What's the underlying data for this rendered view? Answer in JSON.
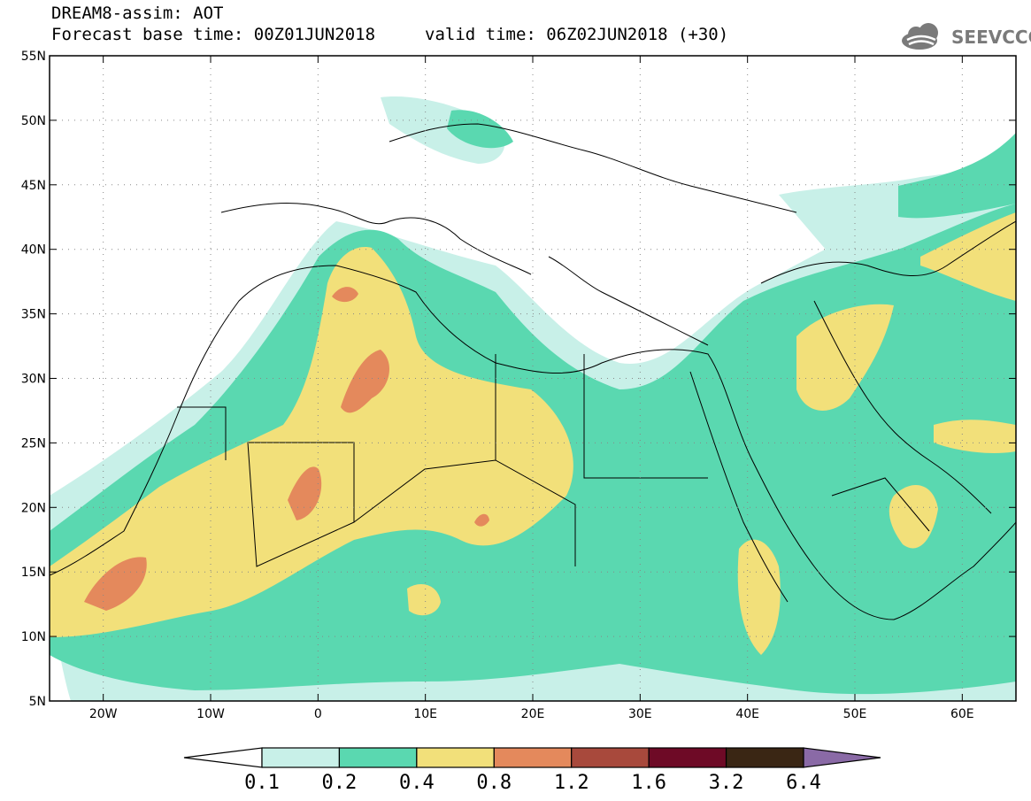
{
  "header": {
    "title": "DREAM8-assim: AOT",
    "base_time": "Forecast base time: 00Z01JUN2018",
    "valid_time": "valid time: 06Z02JUN2018 (+30)",
    "logo_text": "SEEVCCC",
    "logo_icon": "cloud-icon"
  },
  "map": {
    "lon_range": [
      -25,
      65
    ],
    "lat_range": [
      5,
      55
    ],
    "lat_ticks": [
      "5N",
      "10N",
      "15N",
      "20N",
      "25N",
      "30N",
      "35N",
      "40N",
      "45N",
      "50N",
      "55N"
    ],
    "lon_ticks": [
      "20W",
      "10W",
      "0",
      "10E",
      "20E",
      "30E",
      "40E",
      "50E",
      "60E"
    ],
    "gridlines": "dotted"
  },
  "colorbar": {
    "labels": [
      "0.1",
      "0.2",
      "0.4",
      "0.8",
      "1.2",
      "1.6",
      "3.2",
      "6.4"
    ],
    "colors": [
      "#c8f0e8",
      "#5ad8b0",
      "#f2e07a",
      "#e4895c",
      "#a8493c",
      "#6e0a26",
      "#3a2614",
      "#8a6aa6"
    ],
    "extend": "both"
  }
}
